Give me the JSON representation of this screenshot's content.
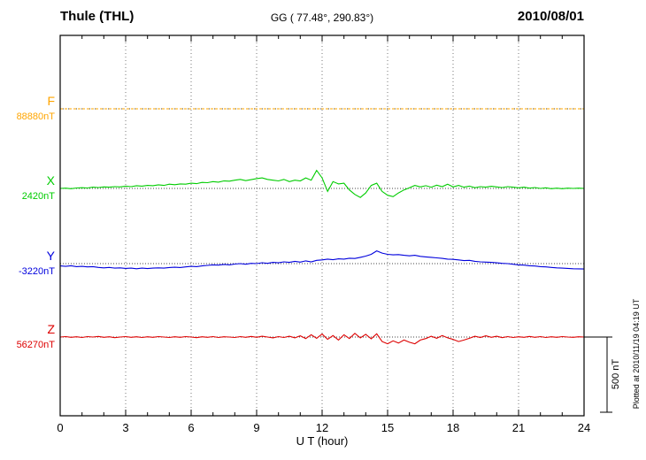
{
  "header": {
    "station": "Thule (THL)",
    "coords": "GG ( 77.48°, 290.83°)",
    "date": "2010/08/01"
  },
  "axis": {
    "xlabel": "U T (hour)",
    "ticks": [
      "0",
      "3",
      "6",
      "9",
      "12",
      "15",
      "18",
      "21",
      "24"
    ]
  },
  "scale_bar": {
    "label": "500 nT",
    "value_nT": 500
  },
  "footer": {
    "plotted_at": "Plotted at 2010/11/19 04:19 UT"
  },
  "chart_data": {
    "type": "line",
    "title": "Thule (THL) magnetogram 2010/08/01",
    "xlabel": "U T (hour)",
    "ylabel": "",
    "x_range_hours": [
      0,
      24
    ],
    "x_tick_step_hours": 3,
    "x_step_hours": 0.25,
    "grid": "dotted vertical lines every 3 hours, dotted horizontal baseline per component",
    "scale_bar_nT": 500,
    "series": [
      {
        "name": "F",
        "color": "#FFA500",
        "style": "dotted",
        "baseline_label": "88880nT",
        "baseline_nT": 88880,
        "offsets_nT": [
          0,
          0,
          0,
          0,
          0,
          0,
          0,
          0,
          0,
          0,
          0,
          0,
          0,
          0,
          0,
          0,
          0,
          0,
          0,
          0,
          0,
          0,
          0,
          0,
          0,
          0,
          0,
          0,
          0,
          0,
          0,
          0,
          0,
          0,
          0,
          0,
          0,
          0,
          0,
          0,
          0,
          0,
          0,
          0,
          0,
          0,
          0,
          0,
          0,
          0,
          0,
          0,
          0,
          0,
          0,
          0,
          0,
          0,
          0,
          0,
          0,
          0,
          0,
          0,
          0,
          0,
          0,
          0,
          0,
          0,
          0,
          0,
          0,
          0,
          0,
          0,
          0,
          0,
          0,
          0,
          0,
          0,
          0,
          0,
          0,
          0,
          0,
          0,
          0,
          0,
          0,
          0,
          0,
          0,
          0,
          0,
          0
        ]
      },
      {
        "name": "X",
        "color": "#00CC00",
        "style": "solid",
        "baseline_label": "2420nT",
        "baseline_nT": 2420,
        "offsets_nT": [
          0,
          2,
          -2,
          3,
          5,
          3,
          8,
          6,
          10,
          8,
          12,
          10,
          15,
          12,
          18,
          15,
          20,
          18,
          24,
          20,
          28,
          25,
          30,
          28,
          35,
          32,
          40,
          38,
          45,
          42,
          50,
          48,
          55,
          60,
          52,
          58,
          65,
          70,
          60,
          55,
          50,
          60,
          45,
          55,
          50,
          70,
          55,
          120,
          70,
          -20,
          45,
          30,
          35,
          -10,
          -40,
          -60,
          -30,
          20,
          35,
          -20,
          -45,
          -55,
          -30,
          -10,
          5,
          20,
          10,
          18,
          8,
          22,
          12,
          28,
          10,
          20,
          8,
          15,
          5,
          12,
          8,
          14,
          10,
          6,
          12,
          8,
          4,
          8,
          2,
          6,
          0,
          4,
          -2,
          2,
          -2,
          2,
          0,
          2,
          0
        ]
      },
      {
        "name": "Y",
        "color": "#0000DD",
        "style": "solid",
        "baseline_label": "-3220nT",
        "baseline_nT": -3220,
        "offsets_nT": [
          -15,
          -18,
          -14,
          -20,
          -18,
          -22,
          -20,
          -25,
          -28,
          -25,
          -30,
          -28,
          -32,
          -30,
          -34,
          -30,
          -33,
          -30,
          -28,
          -30,
          -26,
          -24,
          -26,
          -22,
          -18,
          -20,
          -15,
          -12,
          -8,
          -10,
          -5,
          -8,
          -3,
          0,
          -4,
          2,
          0,
          6,
          2,
          8,
          5,
          12,
          8,
          15,
          10,
          18,
          12,
          22,
          25,
          30,
          26,
          32,
          30,
          36,
          34,
          42,
          50,
          62,
          85,
          70,
          62,
          58,
          60,
          55,
          52,
          55,
          48,
          45,
          42,
          38,
          35,
          30,
          28,
          25,
          20,
          22,
          15,
          12,
          10,
          8,
          5,
          2,
          0,
          -4,
          -8,
          -10,
          -14,
          -16,
          -20,
          -22,
          -25,
          -28,
          -30,
          -32,
          -34,
          -35,
          -36
        ]
      },
      {
        "name": "Z",
        "color": "#DD0000",
        "style": "solid",
        "baseline_label": "56270nT",
        "baseline_nT": 56270,
        "offsets_nT": [
          0,
          3,
          -2,
          2,
          -3,
          3,
          0,
          4,
          -2,
          2,
          -4,
          0,
          3,
          -2,
          2,
          -3,
          2,
          -2,
          3,
          0,
          -3,
          2,
          -2,
          3,
          0,
          -4,
          2,
          -2,
          3,
          -3,
          2,
          0,
          -3,
          3,
          -2,
          4,
          -2,
          5,
          0,
          -5,
          3,
          -3,
          5,
          -5,
          8,
          -10,
          15,
          -8,
          20,
          -15,
          10,
          -20,
          15,
          -10,
          25,
          -5,
          18,
          -12,
          22,
          -30,
          -45,
          -25,
          -40,
          -20,
          -35,
          -45,
          -20,
          -10,
          5,
          -8,
          10,
          -5,
          -15,
          -30,
          -20,
          -8,
          5,
          -3,
          8,
          -2,
          5,
          -4,
          3,
          -3,
          2,
          -2,
          4,
          -2,
          3,
          -3,
          2,
          -2,
          3,
          0,
          -2,
          2,
          0
        ]
      }
    ]
  }
}
